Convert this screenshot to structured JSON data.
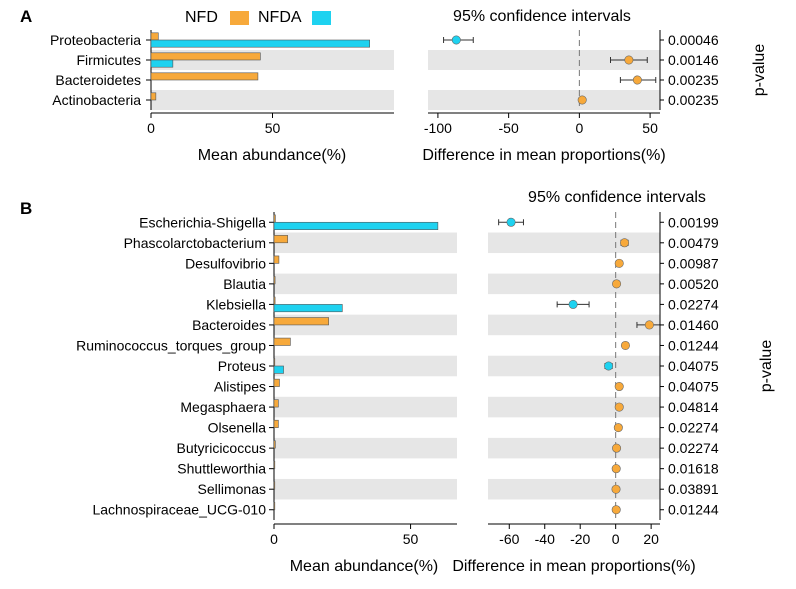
{
  "figure": {
    "legend": {
      "nfd_label": "NFD",
      "nfda_label": "NFDA"
    },
    "panel_a_letter": "A",
    "panel_b_letter": "B"
  },
  "chart_data": [
    {
      "panel": "A",
      "type": "bar",
      "categories": [
        "Proteobacteria",
        "Firmicutes",
        "Bacteroidetes",
        "Actinobacteria"
      ],
      "series": [
        {
          "name": "NFD",
          "color": "#f7a93b",
          "values": [
            3,
            45,
            44,
            2
          ]
        },
        {
          "name": "NFDA",
          "color": "#1ed2f0",
          "values": [
            90,
            9,
            0,
            0
          ]
        }
      ],
      "xlabel": "Mean abundance(%)",
      "xticks": [
        0,
        50
      ],
      "xlim": [
        0,
        100
      ],
      "grid": false
    },
    {
      "panel": "A",
      "type": "scatter",
      "title": "95% confidence intervals",
      "xlabel": "Difference in mean proportions(%)",
      "right_axis_title": "p-value",
      "xticks": [
        -100,
        -50,
        0,
        50
      ],
      "xlim": [
        -107,
        57
      ],
      "points": [
        {
          "category": "Proteobacteria",
          "diff": -87,
          "ci": [
            -96,
            -75
          ],
          "group": "NFDA",
          "color": "#1ed2f0",
          "p_value": "0.00046"
        },
        {
          "category": "Firmicutes",
          "diff": 35,
          "ci": [
            22,
            48
          ],
          "group": "NFD",
          "color": "#f7a93b",
          "p_value": "0.00146"
        },
        {
          "category": "Bacteroidetes",
          "diff": 41,
          "ci": [
            29,
            54
          ],
          "group": "NFD",
          "color": "#f7a93b",
          "p_value": "0.00235"
        },
        {
          "category": "Actinobacteria",
          "diff": 2,
          "ci": [
            0,
            4
          ],
          "group": "NFD",
          "color": "#f7a93b",
          "p_value": "0.00235"
        }
      ]
    },
    {
      "panel": "B",
      "type": "bar",
      "categories": [
        "Escherichia-Shigella",
        "Phascolarctobacterium",
        "Desulfovibrio",
        "Blautia",
        "Klebsiella",
        "Bacteroides",
        "Ruminococcus_torques_group",
        "Proteus",
        "Alistipes",
        "Megasphaera",
        "Olsenella",
        "Butyricicoccus",
        "Shuttleworthia",
        "Sellimonas",
        "Lachnospiraceae_UCG-010"
      ],
      "series": [
        {
          "name": "NFD",
          "color": "#f7a93b",
          "values": [
            0.5,
            5.0,
            1.8,
            0.4,
            0.4,
            20.0,
            6.0,
            0.2,
            2.0,
            1.6,
            1.6,
            0.5,
            0.3,
            0.2,
            0.3
          ]
        },
        {
          "name": "NFDA",
          "color": "#1ed2f0",
          "values": [
            60.0,
            0,
            0,
            0,
            25.0,
            0,
            0,
            3.5,
            0,
            0,
            0,
            0,
            0,
            0,
            0
          ]
        }
      ],
      "xlabel": "Mean abundance(%)",
      "xticks": [
        0,
        50
      ],
      "xlim": [
        0,
        67
      ],
      "grid": false
    },
    {
      "panel": "B",
      "type": "scatter",
      "title": "95% confidence intervals",
      "xlabel": "Difference in mean proportions(%)",
      "right_axis_title": "p-value",
      "xticks": [
        -60,
        -40,
        -20,
        0,
        20
      ],
      "xlim": [
        -72,
        25
      ],
      "points": [
        {
          "category": "Escherichia-Shigella",
          "diff": -59,
          "ci": [
            -66,
            -52
          ],
          "group": "NFDA",
          "color": "#1ed2f0",
          "p_value": "0.00199"
        },
        {
          "category": "Phascolarctobacterium",
          "diff": 5,
          "ci": [
            3,
            7
          ],
          "group": "NFD",
          "color": "#f7a93b",
          "p_value": "0.00479"
        },
        {
          "category": "Desulfovibrio",
          "diff": 2,
          "ci": [
            1,
            3
          ],
          "group": "NFD",
          "color": "#f7a93b",
          "p_value": "0.00987"
        },
        {
          "category": "Blautia",
          "diff": 0.5,
          "ci": [
            0,
            1
          ],
          "group": "NFD",
          "color": "#f7a93b",
          "p_value": "0.00520"
        },
        {
          "category": "Klebsiella",
          "diff": -24,
          "ci": [
            -33,
            -15
          ],
          "group": "NFDA",
          "color": "#1ed2f0",
          "p_value": "0.02274"
        },
        {
          "category": "Bacteroides",
          "diff": 19,
          "ci": [
            12,
            25
          ],
          "group": "NFD",
          "color": "#f7a93b",
          "p_value": "0.01460"
        },
        {
          "category": "Ruminococcus_torques_group",
          "diff": 5.5,
          "ci": [
            4.5,
            6.5
          ],
          "group": "NFD",
          "color": "#f7a93b",
          "p_value": "0.01244"
        },
        {
          "category": "Proteus",
          "diff": -4,
          "ci": [
            -6,
            -2
          ],
          "group": "NFDA",
          "color": "#1ed2f0",
          "p_value": "0.04075"
        },
        {
          "category": "Alistipes",
          "diff": 2,
          "ci": [
            1,
            3
          ],
          "group": "NFD",
          "color": "#f7a93b",
          "p_value": "0.04075"
        },
        {
          "category": "Megasphaera",
          "diff": 2,
          "ci": [
            1,
            3
          ],
          "group": "NFD",
          "color": "#f7a93b",
          "p_value": "0.04814"
        },
        {
          "category": "Olsenella",
          "diff": 1.5,
          "ci": [
            0.5,
            2.5
          ],
          "group": "NFD",
          "color": "#f7a93b",
          "p_value": "0.02274"
        },
        {
          "category": "Butyricicoccus",
          "diff": 0.5,
          "ci": [
            0,
            1
          ],
          "group": "NFD",
          "color": "#f7a93b",
          "p_value": "0.02274"
        },
        {
          "category": "Shuttleworthia",
          "diff": 0.3,
          "ci": [
            0,
            0.6
          ],
          "group": "NFD",
          "color": "#f7a93b",
          "p_value": "0.01618"
        },
        {
          "category": "Sellimonas",
          "diff": 0.2,
          "ci": [
            0,
            0.4
          ],
          "group": "NFD",
          "color": "#f7a93b",
          "p_value": "0.03891"
        },
        {
          "category": "Lachnospiraceae_UCG-010",
          "diff": 0.3,
          "ci": [
            0,
            0.6
          ],
          "group": "NFD",
          "color": "#f7a93b",
          "p_value": "0.01244"
        }
      ]
    }
  ]
}
